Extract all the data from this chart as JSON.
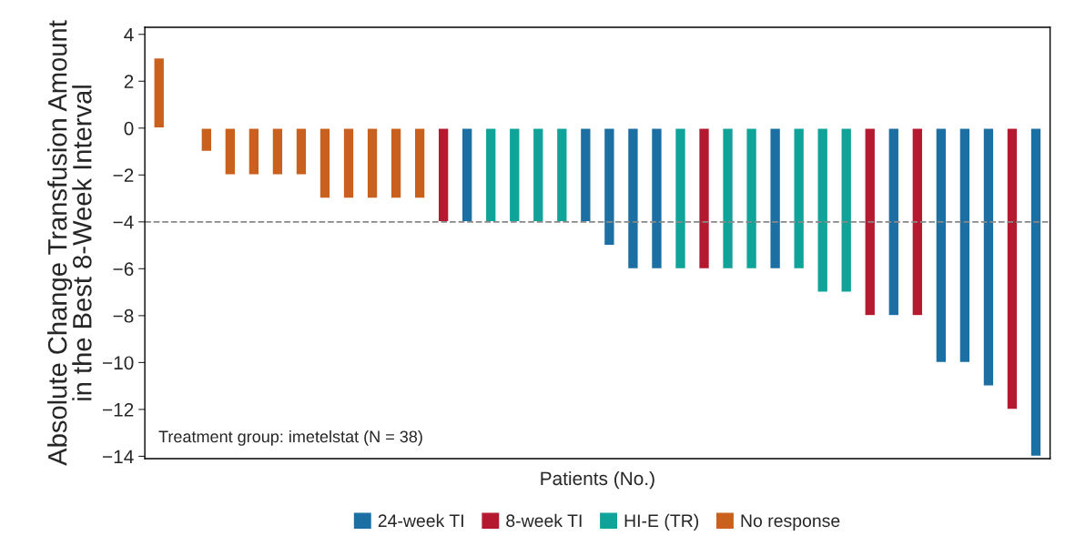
{
  "chart_data": {
    "type": "bar",
    "xlabel": "Patients (No.)",
    "ylabel": "Absolute Change Transfusion Amount\nin the Best 8-Week Interval",
    "categories": [
      null,
      null,
      null,
      null,
      null,
      null,
      null,
      null,
      null,
      null,
      null,
      null,
      null,
      null,
      null,
      null,
      null,
      null,
      null,
      null,
      null,
      null,
      null,
      null,
      null,
      null,
      null,
      null,
      null,
      null,
      null,
      null,
      null,
      null,
      null,
      null,
      null,
      null
    ],
    "series": [
      {
        "name": "24-week TI",
        "color": "#1b6fa3",
        "values": [
          null,
          null,
          null,
          null,
          null,
          null,
          null,
          null,
          null,
          null,
          null,
          null,
          null,
          -4,
          null,
          null,
          null,
          null,
          -4,
          -5,
          -6,
          -6,
          null,
          null,
          null,
          null,
          -6,
          null,
          null,
          null,
          null,
          -8,
          null,
          -10,
          -10,
          -11,
          null,
          -14
        ]
      },
      {
        "name": "8-week TI",
        "color": "#b5192f",
        "values": [
          null,
          null,
          null,
          null,
          null,
          null,
          null,
          null,
          null,
          null,
          null,
          null,
          -4,
          null,
          null,
          null,
          null,
          null,
          null,
          null,
          null,
          null,
          null,
          -6,
          null,
          null,
          null,
          null,
          null,
          null,
          -8,
          null,
          -8,
          null,
          null,
          null,
          -12,
          null
        ]
      },
      {
        "name": "HI-E (TR)",
        "color": "#10a39a",
        "values": [
          null,
          null,
          null,
          null,
          null,
          null,
          null,
          null,
          null,
          null,
          null,
          null,
          null,
          null,
          -4,
          -4,
          -4,
          -4,
          null,
          null,
          null,
          null,
          -6,
          null,
          -6,
          -6,
          null,
          -6,
          -7,
          -7,
          null,
          null,
          null,
          null,
          null,
          null,
          null,
          null
        ]
      },
      {
        "name": "No response",
        "color": "#c9601e",
        "values": [
          3,
          null,
          -1,
          -2,
          -2,
          -2,
          -2,
          -3,
          -3,
          -3,
          -3,
          -3,
          null,
          null,
          null,
          null,
          null,
          null,
          null,
          null,
          null,
          null,
          null,
          null,
          null,
          null,
          null,
          null,
          null,
          null,
          null,
          null,
          null,
          null,
          null,
          null,
          null,
          null
        ]
      }
    ],
    "ylim": [
      -14.1,
      4.3
    ],
    "yticks": [
      -14,
      -12,
      -10,
      -8,
      -6,
      -4,
      -2,
      0,
      2,
      4
    ],
    "ref_lines": [
      {
        "axis": "y",
        "value": -4,
        "color": "#888888",
        "line_style": "dashed"
      }
    ],
    "annotations": [
      "Treatment group: imetelstat (N = 38)"
    ],
    "tick_labels": "y",
    "legend": "bottom",
    "grid": false
  }
}
